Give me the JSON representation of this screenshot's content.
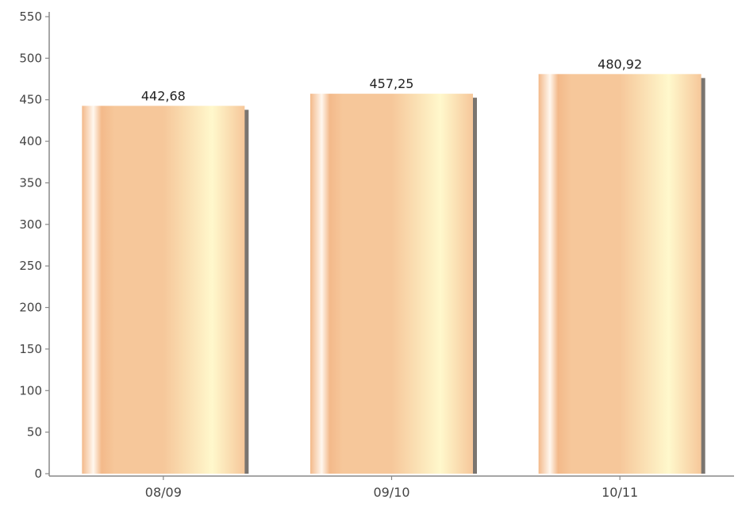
{
  "chart_data": {
    "type": "bar",
    "categories": [
      "08/09",
      "09/10",
      "10/11"
    ],
    "values": [
      442.68,
      457.25,
      480.92
    ],
    "value_labels": [
      "442,68",
      "457,25",
      "480,92"
    ],
    "ylim": [
      0,
      550
    ],
    "yticks": [
      0,
      50,
      100,
      150,
      200,
      250,
      300,
      350,
      400,
      450,
      500,
      550
    ],
    "ytick_labels": [
      "0",
      "50",
      "100",
      "150",
      "200",
      "250",
      "300",
      "350",
      "400",
      "450",
      "500",
      "550"
    ],
    "grid": false,
    "legend": "none",
    "colors": {
      "bar_edge": "#f3b98a",
      "bar_highlight": "#fff7ee",
      "bar_mid": "#f6c79a",
      "bar_light": "#fff8cc",
      "bar_shadow": "#7a7570",
      "axis": "#888888"
    }
  }
}
